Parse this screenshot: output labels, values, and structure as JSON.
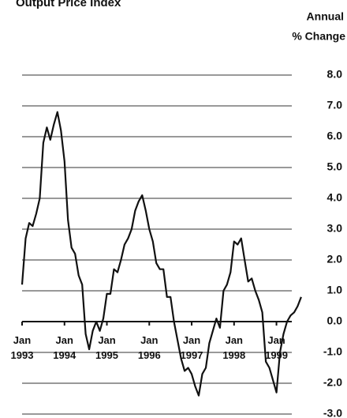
{
  "chart_data": {
    "type": "line",
    "title": "Output Price Index",
    "y_label_lines": [
      "Annual",
      "% Change"
    ],
    "categories": [
      "Jan 1993",
      null,
      null,
      null,
      null,
      null,
      null,
      null,
      null,
      null,
      null,
      null,
      "Jan 1994",
      null,
      null,
      null,
      null,
      null,
      null,
      null,
      null,
      null,
      null,
      null,
      "Jan 1995",
      null,
      null,
      null,
      null,
      null,
      null,
      null,
      null,
      null,
      null,
      null,
      "Jan 1996",
      null,
      null,
      null,
      null,
      null,
      null,
      null,
      null,
      null,
      null,
      null,
      "Jan 1997",
      null,
      null,
      null,
      null,
      null,
      null,
      null,
      null,
      null,
      null,
      null,
      "Jan 1998",
      null,
      null,
      null,
      null,
      null,
      null,
      null,
      null,
      null,
      null,
      null,
      "Jan 1999",
      null,
      null,
      null,
      null,
      null,
      null,
      null
    ],
    "series": [
      {
        "color": "#111111",
        "values": [
          1.2,
          2.7,
          3.2,
          3.1,
          3.5,
          4.0,
          5.8,
          6.3,
          5.9,
          6.4,
          6.8,
          6.2,
          5.2,
          3.3,
          2.4,
          2.2,
          1.5,
          1.2,
          -0.4,
          -0.9,
          -0.3,
          0.0,
          -0.3,
          0.1,
          0.9,
          0.9,
          1.7,
          1.6,
          2.0,
          2.5,
          2.7,
          3.0,
          3.6,
          3.9,
          4.1,
          3.6,
          3.0,
          2.6,
          1.9,
          1.7,
          1.7,
          0.8,
          0.8,
          0.0,
          -0.6,
          -1.2,
          -1.6,
          -1.5,
          -1.7,
          -2.1,
          -2.4,
          -1.7,
          -1.5,
          -0.7,
          -0.3,
          0.1,
          -0.2,
          1.0,
          1.2,
          1.6,
          2.6,
          2.5,
          2.7,
          2.0,
          1.3,
          1.4,
          1.0,
          0.7,
          0.3,
          -1.3,
          -1.5,
          -1.9,
          -2.3,
          -1.0,
          -0.4,
          0.0,
          0.2,
          0.3,
          0.5,
          0.8
        ]
      }
    ],
    "ylim": [
      -3,
      8.3
    ],
    "yticks": [
      {
        "value": 8,
        "label": "8.0"
      },
      {
        "value": 7,
        "label": "7.0"
      },
      {
        "value": 6,
        "label": "6.0"
      },
      {
        "value": 5,
        "label": "5.0"
      },
      {
        "value": 4,
        "label": "4.0"
      },
      {
        "value": 3,
        "label": "3.0"
      },
      {
        "value": 2,
        "label": "2.0"
      },
      {
        "value": 1,
        "label": "1.0"
      },
      {
        "value": 0,
        "label": "0.0"
      },
      {
        "value": -1,
        "label": "-1.0"
      },
      {
        "value": -2,
        "label": "-2.0"
      },
      {
        "value": -3,
        "label": "-3.0"
      }
    ],
    "grid": true,
    "grid_color": "#999999"
  }
}
